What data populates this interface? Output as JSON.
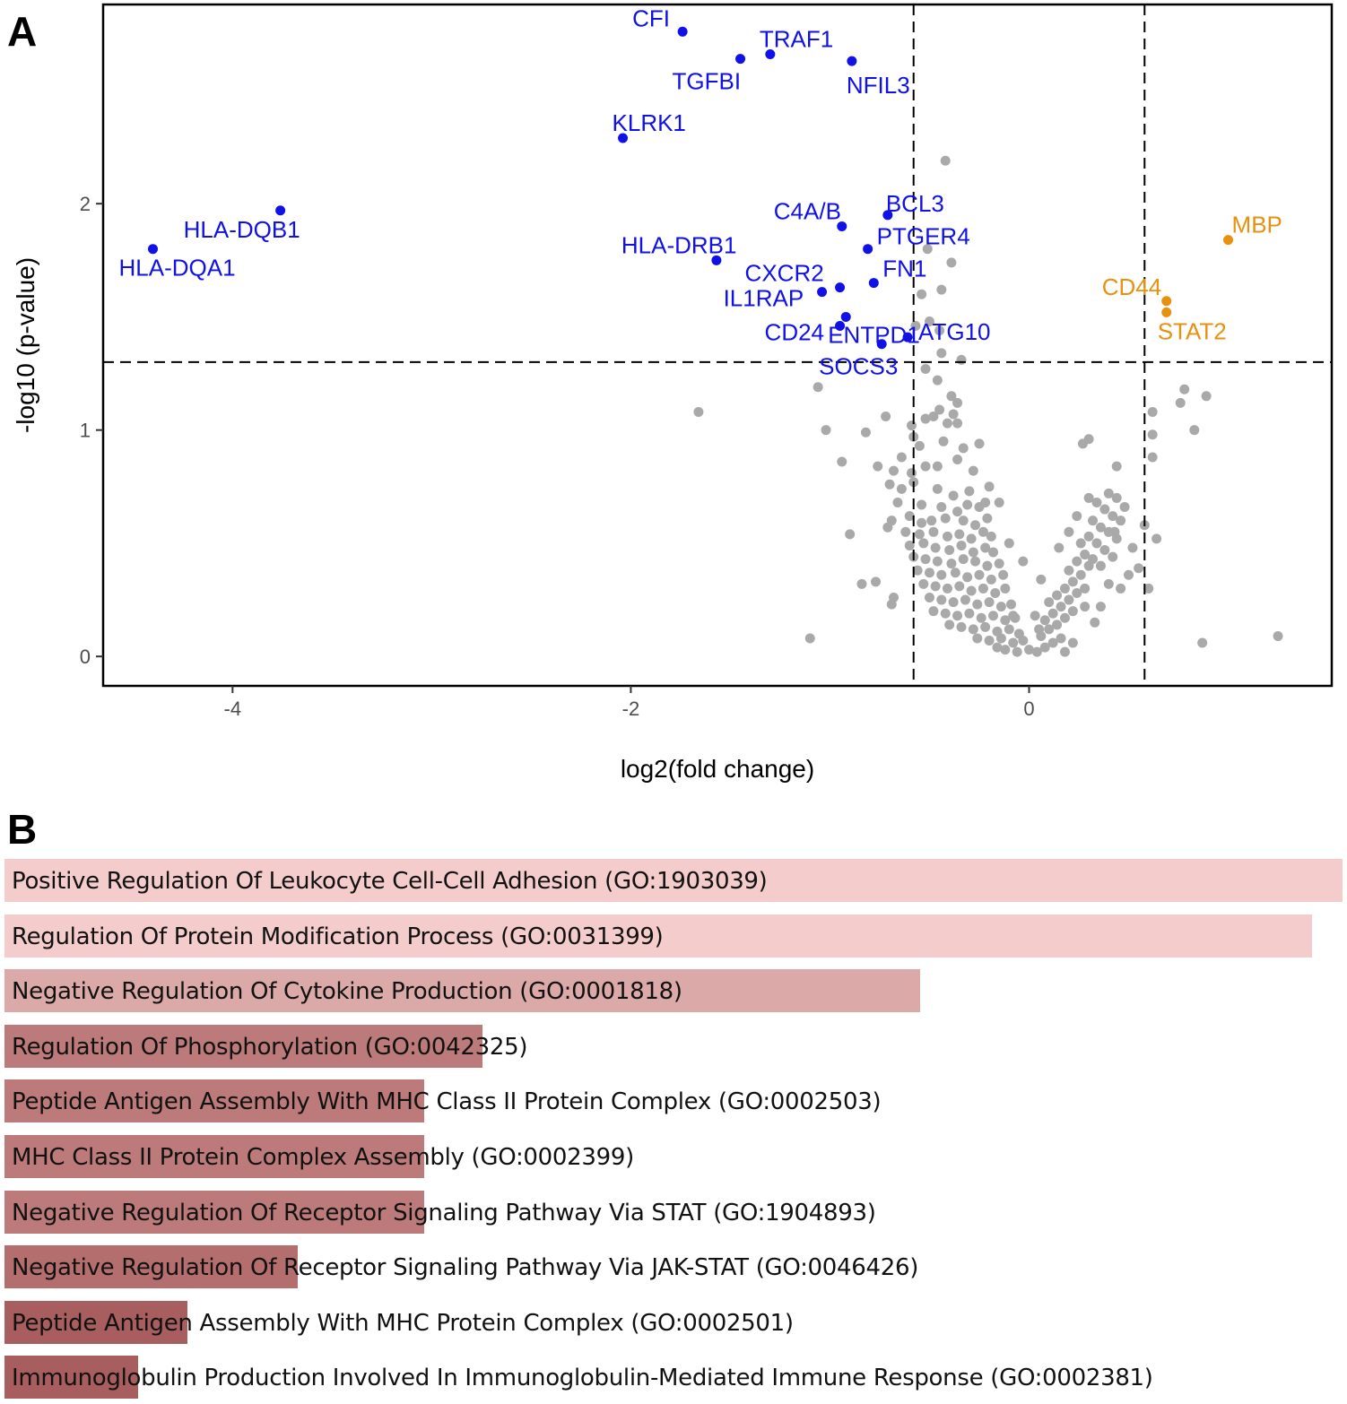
{
  "panel_a_label": "A",
  "panel_b_label": "B",
  "chart_data": [
    {
      "type": "scatter",
      "subtype": "volcano",
      "xlabel": "log2(fold change)",
      "ylabel": "-log10 (p-value)",
      "xlim": [
        -4.65,
        1.52
      ],
      "ylim": [
        -0.13,
        2.88
      ],
      "xticks": [
        -4,
        -2,
        0
      ],
      "yticks": [
        0,
        1,
        2
      ],
      "thresholds": {
        "x": [
          -0.58,
          0.58
        ],
        "y": 1.3
      },
      "colors": {
        "down": "#1010e8",
        "up": "#e8900f",
        "ns": "#a9a9a9"
      },
      "labeled_points": [
        {
          "gene": "CFI",
          "x": -1.74,
          "y": 2.76,
          "group": "down"
        },
        {
          "gene": "TRAF1",
          "x": -1.3,
          "y": 2.66,
          "group": "down"
        },
        {
          "gene": "TGFBI",
          "x": -1.45,
          "y": 2.64,
          "group": "down"
        },
        {
          "gene": "NFIL3",
          "x": -0.89,
          "y": 2.63,
          "group": "down"
        },
        {
          "gene": "KLRK1",
          "x": -2.04,
          "y": 2.29,
          "group": "down"
        },
        {
          "gene": "HLA-DQB1",
          "x": -3.76,
          "y": 1.97,
          "group": "down"
        },
        {
          "gene": "HLA-DQA1",
          "x": -4.4,
          "y": 1.8,
          "group": "down"
        },
        {
          "gene": "BCL3",
          "x": -0.71,
          "y": 1.95,
          "group": "down"
        },
        {
          "gene": "C4A/B",
          "x": -0.94,
          "y": 1.9,
          "group": "down"
        },
        {
          "gene": "PTGER4",
          "x": -0.81,
          "y": 1.8,
          "group": "down"
        },
        {
          "gene": "HLA-DRB1",
          "x": -1.57,
          "y": 1.75,
          "group": "down"
        },
        {
          "gene": "FN1",
          "x": -0.78,
          "y": 1.65,
          "group": "down"
        },
        {
          "gene": "CXCR2",
          "x": -0.95,
          "y": 1.63,
          "group": "down"
        },
        {
          "gene": "IL1RAP",
          "x": -1.04,
          "y": 1.61,
          "group": "down"
        },
        {
          "gene": "ENTPD1",
          "x": -0.92,
          "y": 1.5,
          "group": "down"
        },
        {
          "gene": "CD24",
          "x": -0.95,
          "y": 1.46,
          "group": "down"
        },
        {
          "gene": "ATG10",
          "x": -0.61,
          "y": 1.41,
          "group": "down"
        },
        {
          "gene": "SOCS3",
          "x": -0.74,
          "y": 1.38,
          "group": "down"
        },
        {
          "gene": "MBP",
          "x": 1.0,
          "y": 1.84,
          "group": "up"
        },
        {
          "gene": "CD44",
          "x": 0.69,
          "y": 1.57,
          "group": "up"
        },
        {
          "gene": "STAT2",
          "x": 0.69,
          "y": 1.52,
          "group": "up"
        }
      ],
      "ns_points": [
        [
          -0.42,
          2.19
        ],
        [
          -0.51,
          1.8
        ],
        [
          -0.39,
          1.74
        ],
        [
          -0.54,
          1.6
        ],
        [
          -0.44,
          1.62
        ],
        [
          -0.57,
          1.46
        ],
        [
          -0.5,
          1.48
        ],
        [
          -0.45,
          1.44
        ],
        [
          -0.44,
          1.34
        ],
        [
          -0.34,
          1.31
        ],
        [
          -0.52,
          1.27
        ],
        [
          -1.06,
          1.19
        ],
        [
          -0.46,
          1.22
        ],
        [
          -0.39,
          1.15
        ],
        [
          -0.36,
          1.12
        ],
        [
          -0.38,
          1.07
        ],
        [
          -0.45,
          1.09
        ],
        [
          -0.52,
          1.05
        ],
        [
          -0.41,
          1.03
        ],
        [
          -0.36,
          1.03
        ],
        [
          -0.48,
          1.06
        ],
        [
          -0.72,
          1.06
        ],
        [
          -1.66,
          1.08
        ],
        [
          -1.02,
          1.0
        ],
        [
          -0.82,
          0.99
        ],
        [
          -0.59,
          1.02
        ],
        [
          -0.58,
          0.97
        ],
        [
          -0.55,
          0.93
        ],
        [
          -0.43,
          0.95
        ],
        [
          -0.33,
          0.92
        ],
        [
          -0.25,
          0.94
        ],
        [
          -0.52,
          0.84
        ],
        [
          -0.64,
          0.88
        ],
        [
          -0.94,
          0.86
        ],
        [
          -0.76,
          0.84
        ],
        [
          -0.68,
          0.82
        ],
        [
          -0.59,
          0.81
        ],
        [
          -0.46,
          0.84
        ],
        [
          -0.36,
          0.87
        ],
        [
          -0.28,
          0.82
        ],
        [
          -0.7,
          0.76
        ],
        [
          -0.58,
          0.77
        ],
        [
          -0.64,
          0.74
        ],
        [
          -0.46,
          0.74
        ],
        [
          -0.38,
          0.71
        ],
        [
          -0.3,
          0.73
        ],
        [
          -0.2,
          0.75
        ],
        [
          -0.66,
          0.68
        ],
        [
          -0.54,
          0.67
        ],
        [
          -0.44,
          0.66
        ],
        [
          -0.36,
          0.64
        ],
        [
          -0.31,
          0.67
        ],
        [
          -0.25,
          0.66
        ],
        [
          -0.22,
          0.68
        ],
        [
          -0.69,
          0.6
        ],
        [
          -0.6,
          0.62
        ],
        [
          -0.54,
          0.59
        ],
        [
          -0.49,
          0.6
        ],
        [
          -0.42,
          0.61
        ],
        [
          -0.33,
          0.6
        ],
        [
          -0.27,
          0.58
        ],
        [
          -0.21,
          0.61
        ],
        [
          -0.9,
          0.54
        ],
        [
          -0.71,
          0.57
        ],
        [
          -0.62,
          0.55
        ],
        [
          -0.55,
          0.54
        ],
        [
          -0.48,
          0.55
        ],
        [
          -0.41,
          0.53
        ],
        [
          -0.35,
          0.54
        ],
        [
          -0.29,
          0.52
        ],
        [
          -0.23,
          0.55
        ],
        [
          -0.19,
          0.53
        ],
        [
          -0.6,
          0.49
        ],
        [
          -0.53,
          0.5
        ],
        [
          -0.47,
          0.48
        ],
        [
          -0.4,
          0.47
        ],
        [
          -0.34,
          0.49
        ],
        [
          -0.28,
          0.46
        ],
        [
          -0.22,
          0.48
        ],
        [
          -0.18,
          0.46
        ],
        [
          -0.58,
          0.44
        ],
        [
          -0.52,
          0.43
        ],
        [
          -0.46,
          0.42
        ],
        [
          -0.39,
          0.41
        ],
        [
          -0.33,
          0.43
        ],
        [
          -0.27,
          0.42
        ],
        [
          -0.21,
          0.4
        ],
        [
          -0.15,
          0.41
        ],
        [
          -0.56,
          0.38
        ],
        [
          -0.5,
          0.37
        ],
        [
          -0.44,
          0.36
        ],
        [
          -0.37,
          0.37
        ],
        [
          -0.31,
          0.35
        ],
        [
          -0.25,
          0.36
        ],
        [
          -0.19,
          0.34
        ],
        [
          -0.13,
          0.36
        ],
        [
          -0.53,
          0.32
        ],
        [
          -0.47,
          0.31
        ],
        [
          -0.41,
          0.3
        ],
        [
          -0.35,
          0.31
        ],
        [
          -0.29,
          0.29
        ],
        [
          -0.23,
          0.3
        ],
        [
          -0.17,
          0.28
        ],
        [
          -0.12,
          0.3
        ],
        [
          -0.84,
          0.32
        ],
        [
          -0.77,
          0.33
        ],
        [
          -0.68,
          0.26
        ],
        [
          -0.69,
          0.23
        ],
        [
          -1.1,
          0.08
        ],
        [
          -0.5,
          0.26
        ],
        [
          -0.44,
          0.25
        ],
        [
          -0.38,
          0.24
        ],
        [
          -0.32,
          0.25
        ],
        [
          -0.26,
          0.23
        ],
        [
          -0.2,
          0.24
        ],
        [
          -0.14,
          0.22
        ],
        [
          -0.09,
          0.23
        ],
        [
          -0.48,
          0.2
        ],
        [
          -0.42,
          0.19
        ],
        [
          -0.36,
          0.18
        ],
        [
          -0.3,
          0.19
        ],
        [
          -0.24,
          0.17
        ],
        [
          -0.18,
          0.18
        ],
        [
          -0.12,
          0.16
        ],
        [
          -0.07,
          0.17
        ],
        [
          -0.4,
          0.14
        ],
        [
          -0.34,
          0.13
        ],
        [
          -0.28,
          0.12
        ],
        [
          -0.22,
          0.13
        ],
        [
          -0.16,
          0.11
        ],
        [
          -0.1,
          0.12
        ],
        [
          -0.05,
          0.1
        ],
        [
          -0.26,
          0.08
        ],
        [
          -0.2,
          0.07
        ],
        [
          -0.14,
          0.08
        ],
        [
          -0.08,
          0.06
        ],
        [
          -0.03,
          0.07
        ],
        [
          -0.12,
          0.03
        ],
        [
          -0.06,
          0.02
        ],
        [
          0.0,
          0.03
        ],
        [
          0.04,
          0.02
        ],
        [
          0.08,
          0.04
        ],
        [
          0.12,
          0.06
        ],
        [
          0.16,
          0.08
        ],
        [
          0.18,
          0.02
        ],
        [
          -0.16,
          0.04
        ],
        [
          0.06,
          0.09
        ],
        [
          0.1,
          0.12
        ],
        [
          0.14,
          0.14
        ],
        [
          0.18,
          0.17
        ],
        [
          0.22,
          0.2
        ],
        [
          0.08,
          0.16
        ],
        [
          0.12,
          0.19
        ],
        [
          0.16,
          0.22
        ],
        [
          0.2,
          0.25
        ],
        [
          0.24,
          0.28
        ],
        [
          0.28,
          0.3
        ],
        [
          0.1,
          0.24
        ],
        [
          0.14,
          0.27
        ],
        [
          0.18,
          0.3
        ],
        [
          0.22,
          0.33
        ],
        [
          0.26,
          0.36
        ],
        [
          0.3,
          0.4
        ],
        [
          0.2,
          0.38
        ],
        [
          0.24,
          0.42
        ],
        [
          0.28,
          0.45
        ],
        [
          0.32,
          0.43
        ],
        [
          0.36,
          0.4
        ],
        [
          0.26,
          0.5
        ],
        [
          0.3,
          0.53
        ],
        [
          0.34,
          0.5
        ],
        [
          0.38,
          0.47
        ],
        [
          0.42,
          0.44
        ],
        [
          0.32,
          0.6
        ],
        [
          0.36,
          0.57
        ],
        [
          0.4,
          0.55
        ],
        [
          0.44,
          0.52
        ],
        [
          0.34,
          0.68
        ],
        [
          0.38,
          0.65
        ],
        [
          0.42,
          0.62
        ],
        [
          0.46,
          0.6
        ],
        [
          0.4,
          0.72
        ],
        [
          0.44,
          0.7
        ],
        [
          0.48,
          0.66
        ],
        [
          0.3,
          0.7
        ],
        [
          0.3,
          0.96
        ],
        [
          0.27,
          0.94
        ],
        [
          0.44,
          0.84
        ],
        [
          0.43,
          0.55
        ],
        [
          0.62,
          0.98
        ],
        [
          0.62,
          0.88
        ],
        [
          0.58,
          0.58
        ],
        [
          0.55,
          0.39
        ],
        [
          0.6,
          0.3
        ],
        [
          0.64,
          0.52
        ],
        [
          0.62,
          1.08
        ],
        [
          0.78,
          1.18
        ],
        [
          0.76,
          1.12
        ],
        [
          0.89,
          1.15
        ],
        [
          0.83,
          1.0
        ],
        [
          0.87,
          0.06
        ],
        [
          1.25,
          0.09
        ],
        [
          0.03,
          0.18
        ],
        [
          0.2,
          0.55
        ],
        [
          0.15,
          0.48
        ],
        [
          -0.15,
          0.68
        ],
        [
          -0.08,
          0.18
        ],
        [
          0.05,
          0.12
        ],
        [
          0.06,
          0.34
        ],
        [
          0.24,
          0.62
        ],
        [
          -0.03,
          0.42
        ],
        [
          -0.1,
          0.5
        ],
        [
          0.4,
          0.32
        ],
        [
          0.36,
          0.22
        ],
        [
          0.5,
          0.36
        ],
        [
          0.46,
          0.3
        ],
        [
          0.28,
          0.22
        ],
        [
          0.33,
          0.15
        ],
        [
          0.22,
          0.06
        ],
        [
          0.52,
          0.48
        ]
      ]
    },
    {
      "type": "bar",
      "orientation": "horizontal",
      "categories": [
        "Positive Regulation Of Leukocyte Cell-Cell Adhesion (GO:1903039)",
        "Regulation Of Protein Modification Process (GO:0031399)",
        "Negative Regulation Of Cytokine Production (GO:0001818)",
        "Regulation Of Phosphorylation (GO:0042325)",
        "Peptide Antigen Assembly With MHC Class II Protein Complex (GO:0002503)",
        "MHC Class II Protein Complex Assembly (GO:0002399)",
        "Negative Regulation Of Receptor Signaling Pathway Via STAT (GO:1904893)",
        "Negative Regulation Of Receptor Signaling Pathway Via JAK-STAT (GO:0046426)",
        "Peptide Antigen Assembly With MHC Protein Complex (GO:0002501)",
        "Immunoglobulin Production Involved In Immunoglobulin-Mediated Immune Response (GO:0002381)"
      ],
      "values": [
        1.0,
        0.977,
        0.684,
        0.357,
        0.314,
        0.314,
        0.314,
        0.219,
        0.137,
        0.1
      ],
      "bar_colors": [
        "#f4cccc",
        "#f4cccc",
        "#dca9a9",
        "#bc7a7a",
        "#bc7a7a",
        "#bc7a7a",
        "#bc7a7a",
        "#b46e6e",
        "#a85e5e",
        "#a85e5e"
      ]
    }
  ]
}
